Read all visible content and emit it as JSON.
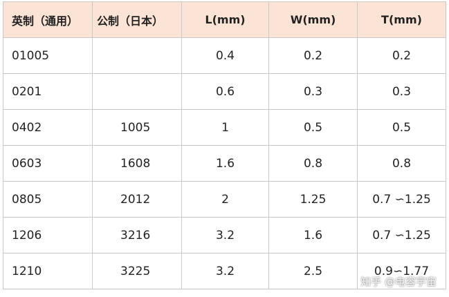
{
  "table": {
    "header": [
      "英制（通用）",
      "公制（日本）",
      "L(mm)",
      "W(mm)",
      "T(mm)"
    ],
    "rows": [
      [
        "01005",
        null,
        "0.4",
        "0.2",
        "0.2"
      ],
      [
        "0201",
        null,
        "0.6",
        "0.3",
        "0.3"
      ],
      [
        "0402",
        "1005",
        "1",
        "0.5",
        "0.5"
      ],
      [
        "0603",
        "1608",
        "1.6",
        "0.8",
        "0.8"
      ],
      [
        "0805",
        "2012",
        "2",
        "1.25",
        "0.7 ∽1.25"
      ],
      [
        "1206",
        "3216",
        "3.2",
        "1.6",
        "0.7 ∽1.25"
      ],
      [
        "1210",
        "3225",
        "3.2",
        "2.5",
        "0.9∽1.77"
      ]
    ]
  },
  "watermark": "知乎 @电容宇宙"
}
